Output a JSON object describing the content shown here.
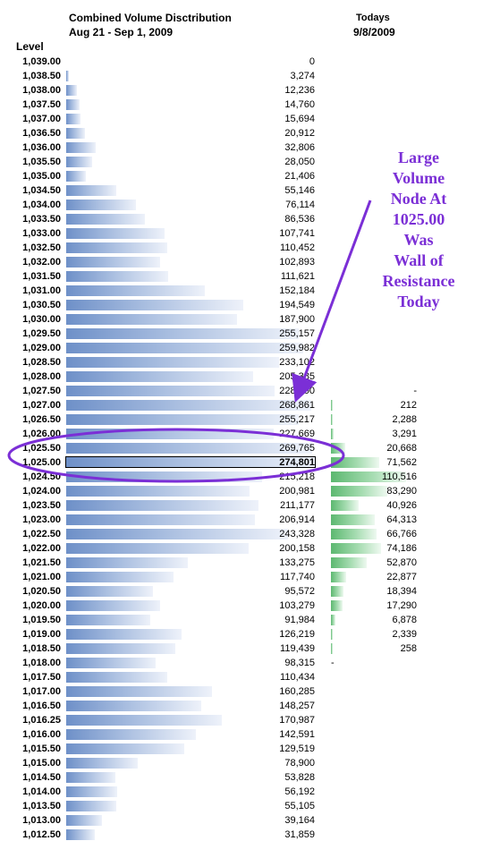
{
  "header": {
    "title": "Combined Volume Disctribution",
    "date_range": "Aug 21 - Sep 1, 2009",
    "today_label": "Todays",
    "today_date": "9/8/2009",
    "level_label": "Level"
  },
  "annotation": {
    "lines": [
      "Large",
      "Volume",
      "Node At",
      "1025.00",
      "Was",
      "Wall of",
      "Resistance",
      "Today"
    ],
    "color": "#7b2fd6"
  },
  "colors": {
    "combined_bar": "#6e90c8",
    "today_bar": "#5cb870",
    "annotation": "#7b2fd6"
  },
  "chart_data": {
    "type": "bar",
    "orientation": "horizontal",
    "highlighted_level": "1,025.00",
    "series": [
      {
        "name": "Combined Volume Disctribution",
        "key": "combined"
      },
      {
        "name": "Todays",
        "key": "today"
      }
    ],
    "rows": [
      {
        "level": "1,039.00",
        "combined": 0,
        "combined_label": "0",
        "today": null,
        "today_label": ""
      },
      {
        "level": "1,038.50",
        "combined": 3274,
        "combined_label": "3,274",
        "today": null,
        "today_label": ""
      },
      {
        "level": "1,038.00",
        "combined": 12236,
        "combined_label": "12,236",
        "today": null,
        "today_label": ""
      },
      {
        "level": "1,037.50",
        "combined": 14760,
        "combined_label": "14,760",
        "today": null,
        "today_label": ""
      },
      {
        "level": "1,037.00",
        "combined": 15694,
        "combined_label": "15,694",
        "today": null,
        "today_label": ""
      },
      {
        "level": "1,036.50",
        "combined": 20912,
        "combined_label": "20,912",
        "today": null,
        "today_label": ""
      },
      {
        "level": "1,036.00",
        "combined": 32806,
        "combined_label": "32,806",
        "today": null,
        "today_label": ""
      },
      {
        "level": "1,035.50",
        "combined": 28050,
        "combined_label": "28,050",
        "today": null,
        "today_label": ""
      },
      {
        "level": "1,035.00",
        "combined": 21406,
        "combined_label": "21,406",
        "today": null,
        "today_label": ""
      },
      {
        "level": "1,034.50",
        "combined": 55146,
        "combined_label": "55,146",
        "today": null,
        "today_label": ""
      },
      {
        "level": "1,034.00",
        "combined": 76114,
        "combined_label": "76,114",
        "today": null,
        "today_label": ""
      },
      {
        "level": "1,033.50",
        "combined": 86536,
        "combined_label": "86,536",
        "today": null,
        "today_label": ""
      },
      {
        "level": "1,033.00",
        "combined": 107741,
        "combined_label": "107,741",
        "today": null,
        "today_label": ""
      },
      {
        "level": "1,032.50",
        "combined": 110452,
        "combined_label": "110,452",
        "today": null,
        "today_label": ""
      },
      {
        "level": "1,032.00",
        "combined": 102893,
        "combined_label": "102,893",
        "today": null,
        "today_label": ""
      },
      {
        "level": "1,031.50",
        "combined": 111621,
        "combined_label": "111,621",
        "today": null,
        "today_label": ""
      },
      {
        "level": "1,031.00",
        "combined": 152184,
        "combined_label": "152,184",
        "today": null,
        "today_label": ""
      },
      {
        "level": "1,030.50",
        "combined": 194549,
        "combined_label": "194,549",
        "today": null,
        "today_label": ""
      },
      {
        "level": "1,030.00",
        "combined": 187900,
        "combined_label": "187,900",
        "today": null,
        "today_label": ""
      },
      {
        "level": "1,029.50",
        "combined": 255157,
        "combined_label": "255,157",
        "today": null,
        "today_label": ""
      },
      {
        "level": "1,029.00",
        "combined": 259982,
        "combined_label": "259,982",
        "today": null,
        "today_label": ""
      },
      {
        "level": "1,028.50",
        "combined": 233102,
        "combined_label": "233,102",
        "today": null,
        "today_label": ""
      },
      {
        "level": "1,028.00",
        "combined": 205385,
        "combined_label": "205,385",
        "today": null,
        "today_label": ""
      },
      {
        "level": "1,027.50",
        "combined": 228600,
        "combined_label": "228,600",
        "today": 0,
        "today_label": "-"
      },
      {
        "level": "1,027.00",
        "combined": 268861,
        "combined_label": "268,861",
        "today": 212,
        "today_label": "212"
      },
      {
        "level": "1,026.50",
        "combined": 255217,
        "combined_label": "255,217",
        "today": 2288,
        "today_label": "2,288"
      },
      {
        "level": "1,026.00",
        "combined": 227669,
        "combined_label": "227,669",
        "today": 3291,
        "today_label": "3,291"
      },
      {
        "level": "1,025.50",
        "combined": 269765,
        "combined_label": "269,765",
        "today": 20668,
        "today_label": "20,668"
      },
      {
        "level": "1,025.00",
        "combined": 274801,
        "combined_label": "274,801",
        "today": 71562,
        "today_label": "71,562"
      },
      {
        "level": "1,024.50",
        "combined": 215218,
        "combined_label": "215,218",
        "today": 110516,
        "today_label": "110,516"
      },
      {
        "level": "1,024.00",
        "combined": 200981,
        "combined_label": "200,981",
        "today": 83290,
        "today_label": "83,290"
      },
      {
        "level": "1,023.50",
        "combined": 211177,
        "combined_label": "211,177",
        "today": 40926,
        "today_label": "40,926"
      },
      {
        "level": "1,023.00",
        "combined": 206914,
        "combined_label": "206,914",
        "today": 64313,
        "today_label": "64,313"
      },
      {
        "level": "1,022.50",
        "combined": 243328,
        "combined_label": "243,328",
        "today": 66766,
        "today_label": "66,766"
      },
      {
        "level": "1,022.00",
        "combined": 200158,
        "combined_label": "200,158",
        "today": 74186,
        "today_label": "74,186"
      },
      {
        "level": "1,021.50",
        "combined": 133275,
        "combined_label": "133,275",
        "today": 52870,
        "today_label": "52,870"
      },
      {
        "level": "1,021.00",
        "combined": 117740,
        "combined_label": "117,740",
        "today": 22877,
        "today_label": "22,877"
      },
      {
        "level": "1,020.50",
        "combined": 95572,
        "combined_label": "95,572",
        "today": 18394,
        "today_label": "18,394"
      },
      {
        "level": "1,020.00",
        "combined": 103279,
        "combined_label": "103,279",
        "today": 17290,
        "today_label": "17,290"
      },
      {
        "level": "1,019.50",
        "combined": 91984,
        "combined_label": "91,984",
        "today": 6878,
        "today_label": "6,878"
      },
      {
        "level": "1,019.00",
        "combined": 126219,
        "combined_label": "126,219",
        "today": 2339,
        "today_label": "2,339"
      },
      {
        "level": "1,018.50",
        "combined": 119439,
        "combined_label": "119,439",
        "today": 258,
        "today_label": "258"
      },
      {
        "level": "1,018.00",
        "combined": 98315,
        "combined_label": "98,315",
        "today": 0,
        "today_label": "-"
      },
      {
        "level": "1,017.50",
        "combined": 110434,
        "combined_label": "110,434",
        "today": null,
        "today_label": ""
      },
      {
        "level": "1,017.00",
        "combined": 160285,
        "combined_label": "160,285",
        "today": null,
        "today_label": ""
      },
      {
        "level": "1,016.50",
        "combined": 148257,
        "combined_label": "148,257",
        "today": null,
        "today_label": ""
      },
      {
        "level": "1,016.25",
        "combined": 170987,
        "combined_label": "170,987",
        "today": null,
        "today_label": ""
      },
      {
        "level": "1,016.00",
        "combined": 142591,
        "combined_label": "142,591",
        "today": null,
        "today_label": ""
      },
      {
        "level": "1,015.50",
        "combined": 129519,
        "combined_label": "129,519",
        "today": null,
        "today_label": ""
      },
      {
        "level": "1,015.00",
        "combined": 78900,
        "combined_label": "78,900",
        "today": null,
        "today_label": ""
      },
      {
        "level": "1,014.50",
        "combined": 53828,
        "combined_label": "53,828",
        "today": null,
        "today_label": ""
      },
      {
        "level": "1,014.00",
        "combined": 56192,
        "combined_label": "56,192",
        "today": null,
        "today_label": ""
      },
      {
        "level": "1,013.50",
        "combined": 55105,
        "combined_label": "55,105",
        "today": null,
        "today_label": ""
      },
      {
        "level": "1,013.00",
        "combined": 39164,
        "combined_label": "39,164",
        "today": null,
        "today_label": ""
      },
      {
        "level": "1,012.50",
        "combined": 31859,
        "combined_label": "31,859",
        "today": null,
        "today_label": ""
      }
    ]
  }
}
